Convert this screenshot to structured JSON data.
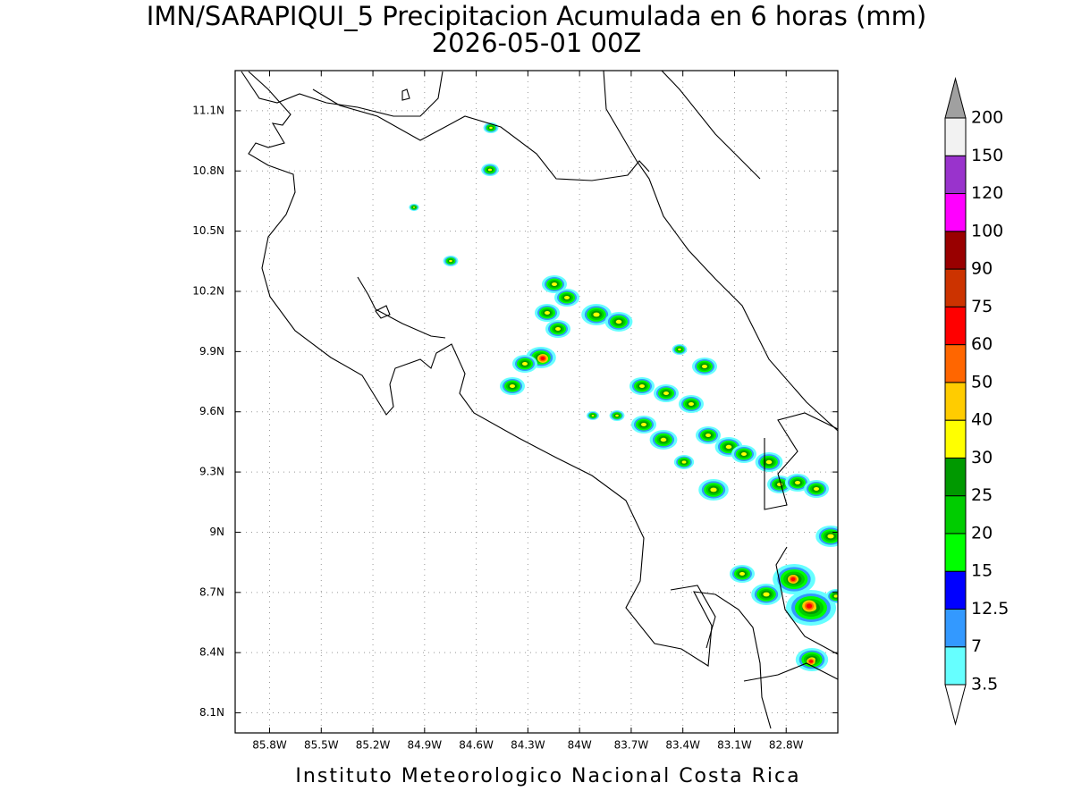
{
  "title": "IMN/SARAPIQUI_5 Precipitacion Acumulada en 6 horas (mm)",
  "subtitle": "2026-05-01 00Z",
  "footer": "Instituto Meteorologico Nacional Costa Rica",
  "map": {
    "xlim": [
      -86,
      -82.5
    ],
    "ylim": [
      8.0,
      11.3
    ],
    "grid": true,
    "xticks": [
      {
        "value": -85.8,
        "label": "85.8W"
      },
      {
        "value": -85.5,
        "label": "85.5W"
      },
      {
        "value": -85.2,
        "label": "85.2W"
      },
      {
        "value": -84.9,
        "label": "84.9W"
      },
      {
        "value": -84.6,
        "label": "84.6W"
      },
      {
        "value": -84.3,
        "label": "84.3W"
      },
      {
        "value": -84,
        "label": "84W"
      },
      {
        "value": -83.7,
        "label": "83.7W"
      },
      {
        "value": -83.4,
        "label": "83.4W"
      },
      {
        "value": -83.1,
        "label": "83.1W"
      },
      {
        "value": -82.8,
        "label": "82.8W"
      }
    ],
    "yticks": [
      {
        "value": 8.1,
        "label": "8.1N"
      },
      {
        "value": 8.4,
        "label": "8.4N"
      },
      {
        "value": 8.7,
        "label": "8.7N"
      },
      {
        "value": 9,
        "label": "9N"
      },
      {
        "value": 9.3,
        "label": "9.3N"
      },
      {
        "value": 9.6,
        "label": "9.6N"
      },
      {
        "value": 9.9,
        "label": "9.9N"
      },
      {
        "value": 10.2,
        "label": "10.2N"
      },
      {
        "value": 10.5,
        "label": "10.5N"
      },
      {
        "value": 10.8,
        "label": "10.8N"
      },
      {
        "value": 11.1,
        "label": "11.1N"
      }
    ]
  },
  "colorbar": {
    "levels": [
      3.5,
      7,
      12.5,
      15,
      20,
      25,
      30,
      40,
      50,
      60,
      75,
      90,
      100,
      120,
      150,
      200
    ],
    "colors": [
      "#66ffff",
      "#3399ff",
      "#0000ff",
      "#00ff00",
      "#00cc00",
      "#009900",
      "#ffff00",
      "#ffcc00",
      "#ff6600",
      "#ff0000",
      "#cc3300",
      "#990000",
      "#ff00ff",
      "#9933cc",
      "#f2f2f2"
    ],
    "over_color": "#a0a0a0",
    "under_color": "#ffffff"
  }
}
